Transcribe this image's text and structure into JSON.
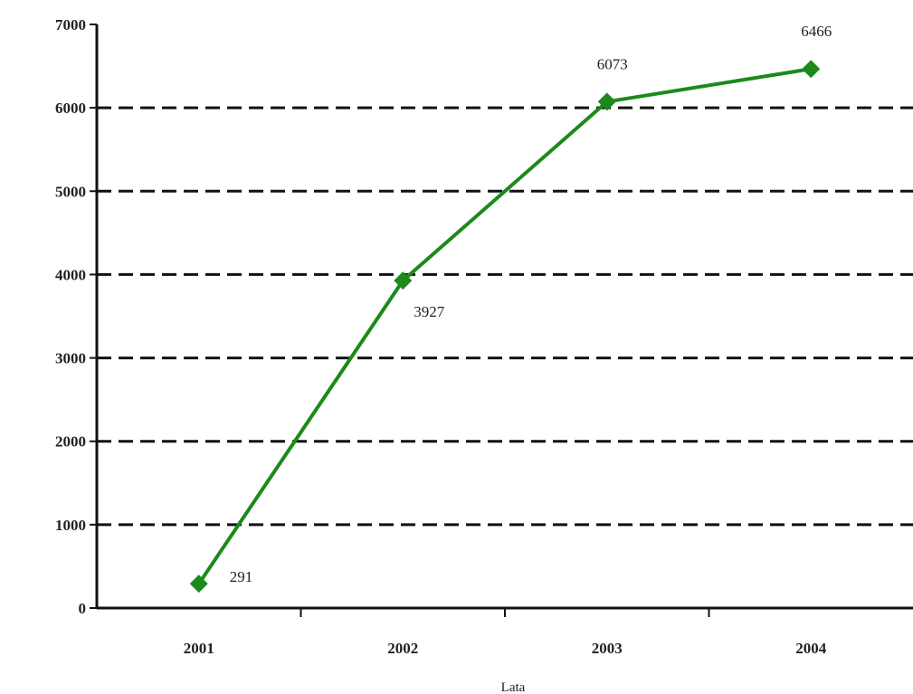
{
  "chart_data": {
    "type": "line",
    "title": "",
    "xlabel": "Lata",
    "ylabel": "",
    "categories": [
      "2001",
      "2002",
      "2003",
      "2004"
    ],
    "ylim": [
      0,
      7000
    ],
    "yticks": [
      0,
      1000,
      2000,
      3000,
      4000,
      5000,
      6000,
      7000
    ],
    "grid": "horizontal dashed",
    "legend": "none",
    "series": [
      {
        "values": [
          291,
          3927,
          6073,
          6466
        ],
        "labels": [
          "291",
          "3927",
          "6073",
          "6466"
        ],
        "color": "#1b8a1b",
        "marker": "diamond"
      }
    ]
  }
}
